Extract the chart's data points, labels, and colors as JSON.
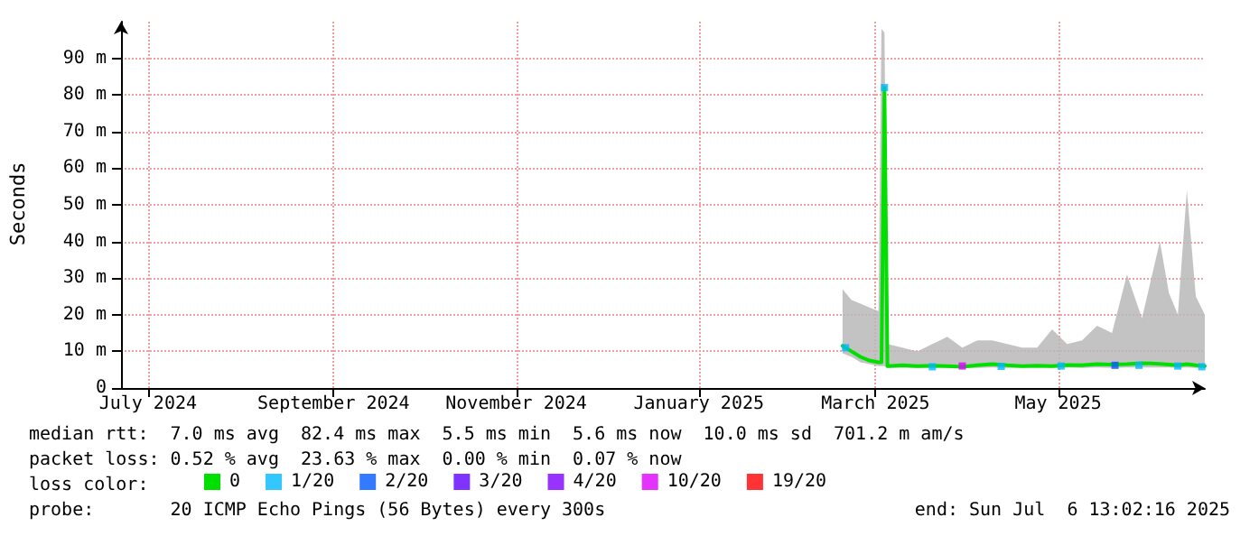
{
  "chart_data": {
    "type": "line",
    "ylabel": "Seconds",
    "legend_title": "loss color:",
    "legend": "bottom",
    "grid": true,
    "line_style": "solid",
    "xlim": [
      "2024-06-22",
      "2025-06-19"
    ],
    "xticks": [
      {
        "value": "2024-07-01",
        "label": "July 2024"
      },
      {
        "value": "2024-09-01",
        "label": "September 2024"
      },
      {
        "value": "2024-11-01",
        "label": "November 2024"
      },
      {
        "value": "2025-01-01",
        "label": "January 2025"
      },
      {
        "value": "2025-03-01",
        "label": "March 2025"
      },
      {
        "value": "2025-05-01",
        "label": "May 2025"
      }
    ],
    "ylim": [
      0,
      100
    ],
    "yticks": [
      0,
      {
        "value": 10,
        "label": "10 m"
      },
      {
        "value": 20,
        "label": "20 m"
      },
      {
        "value": 30,
        "label": "30 m"
      },
      {
        "value": 40,
        "label": "40 m"
      },
      {
        "value": 50,
        "label": "50 m"
      },
      {
        "value": 60,
        "label": "60 m"
      },
      {
        "value": 70,
        "label": "70 m"
      },
      {
        "value": 80,
        "label": "80 m"
      },
      {
        "value": 90,
        "label": "90 m"
      }
    ],
    "annotations": [
      "median rtt:  7.0 ms avg  82.4 ms max  5.5 ms min  5.6 ms now  10.0 ms sd  701.2 m am/s",
      "packet loss: 0.52 % avg  23.63 % max  0.00 % min  0.07 % now",
      "probe:       20 ICMP Echo Pings (56 Bytes) every 300s",
      "end: Sun Jul  6 13:02:16 2025"
    ],
    "series": [
      {
        "name": "0",
        "color": "#00e000",
        "marker": "none",
        "x": [
          "2025-02-18",
          "2025-02-21",
          "2025-02-24",
          "2025-02-27",
          "2025-03-02",
          "2025-03-03",
          "2025-03-04",
          "2025-03-05",
          "2025-03-10",
          "2025-03-15",
          "2025-03-20",
          "2025-03-25",
          "2025-03-30",
          "2025-04-04",
          "2025-04-09",
          "2025-04-14",
          "2025-04-19",
          "2025-04-24",
          "2025-04-29",
          "2025-05-04",
          "2025-05-09",
          "2025-05-14",
          "2025-05-19",
          "2025-05-24",
          "2025-05-29",
          "2025-06-04",
          "2025-06-07",
          "2025-06-10",
          "2025-06-13",
          "2025-06-16",
          "2025-06-19"
        ],
        "values": [
          11.5,
          10,
          8.5,
          7.5,
          7,
          7,
          82,
          6,
          6.2,
          6,
          6.1,
          6,
          5.8,
          6.2,
          6.5,
          6.2,
          6,
          6.1,
          6,
          6.3,
          6.2,
          6.5,
          6.4,
          6.5,
          6.8,
          6.6,
          6.4,
          6.2,
          6.5,
          6.2,
          6
        ],
        "lower": [
          9.5,
          8.5,
          7,
          6.5,
          6,
          6,
          6,
          5.5,
          5.5,
          5.5,
          5.5,
          5.5,
          5.4,
          5.5,
          5.6,
          5.5,
          5.5,
          5.5,
          5.5,
          5.6,
          5.5,
          5.6,
          5.5,
          5.6,
          5.6,
          5.6,
          5.6,
          5.5,
          5.6,
          5.5,
          5.5
        ],
        "upper": [
          27,
          24,
          23,
          22,
          21,
          98,
          97,
          12,
          11,
          10,
          12,
          14,
          11,
          13,
          13,
          12,
          11,
          11,
          16,
          12,
          13,
          17,
          15,
          31,
          19,
          40,
          26,
          20,
          54,
          25,
          20
        ]
      },
      {
        "name": "1/20",
        "color": "#00b8ff",
        "type": "scatter",
        "marker": "square",
        "x": [
          "2025-02-19",
          "2025-03-04",
          "2025-03-20",
          "2025-04-12",
          "2025-05-02",
          "2025-05-28",
          "2025-06-10",
          "2025-06-18"
        ],
        "values": [
          11,
          82,
          5.8,
          5.9,
          6,
          6.2,
          6,
          5.8
        ]
      },
      {
        "name": "2/20",
        "color": "#0059ff",
        "type": "scatter",
        "marker": "square",
        "x": [
          "2025-05-20"
        ],
        "values": [
          6.2
        ]
      },
      {
        "name": "3/20",
        "color": "#5e00ff",
        "type": "scatter"
      },
      {
        "name": "4/20",
        "color": "#7e00ff",
        "type": "scatter"
      },
      {
        "name": "10/20",
        "color": "#dd00ff",
        "type": "scatter",
        "marker": "square",
        "x": [
          "2025-03-30"
        ],
        "values": [
          6
        ]
      },
      {
        "name": "19/20",
        "color": "#ff0000",
        "type": "scatter"
      }
    ]
  }
}
